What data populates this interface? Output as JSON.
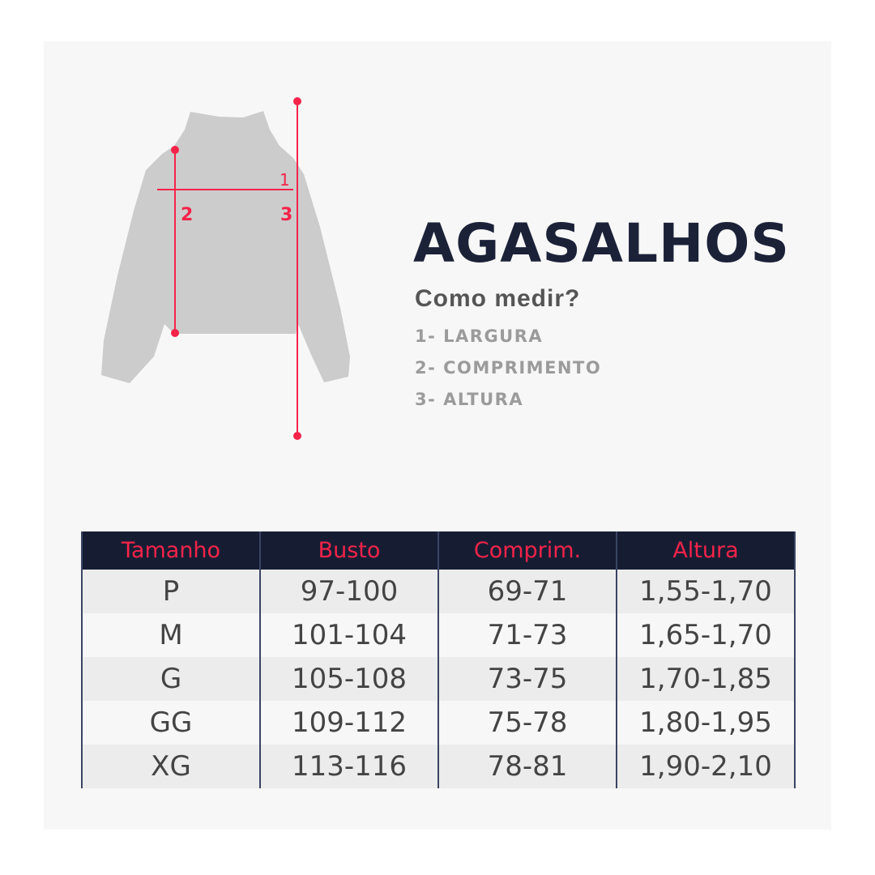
{
  "title": "AGASALHOS",
  "subtitle": "Como medir?",
  "measures": [
    "1- LARGURA",
    "2- COMPRIMENTO",
    "3- ALTURA"
  ],
  "diagram_labels": [
    "1",
    "2",
    "3"
  ],
  "colors": {
    "accent": "#f5234a",
    "header_bg": "#161d33",
    "title": "#1b2238",
    "garment": "#cccccc"
  },
  "table": {
    "headers": [
      "Tamanho",
      "Busto",
      "Comprim.",
      "Altura"
    ],
    "rows": [
      [
        "P",
        "97-100",
        "69-71",
        "1,55-1,70"
      ],
      [
        "M",
        "101-104",
        "71-73",
        "1,65-1,70"
      ],
      [
        "G",
        "105-108",
        "73-75",
        "1,70-1,85"
      ],
      [
        "GG",
        "109-112",
        "75-78",
        "1,80-1,95"
      ],
      [
        "XG",
        "113-116",
        "78-81",
        "1,90-2,10"
      ]
    ]
  }
}
